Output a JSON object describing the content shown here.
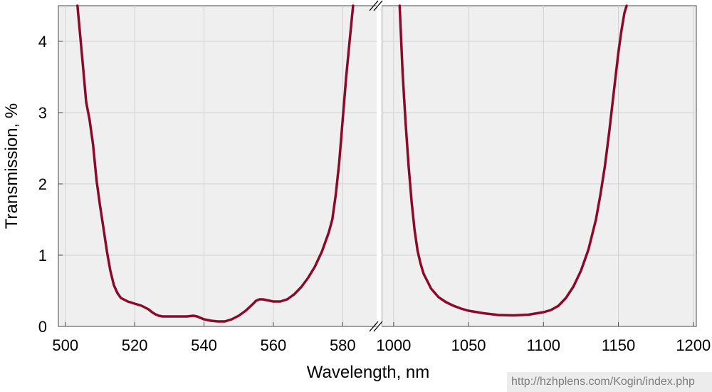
{
  "chart_data": {
    "type": "line",
    "xlabel": "Wavelength, nm",
    "ylabel": "Transmission, %",
    "ylim": [
      0,
      4.5
    ],
    "yticks": [
      0,
      1,
      2,
      3,
      4
    ],
    "grid": true,
    "x_axis_broken": true,
    "line_color": "#8b0a2a",
    "plot_background": "#efefef",
    "panels": [
      {
        "xlim": [
          498,
          590
        ],
        "xticks": [
          500,
          520,
          540,
          560,
          580
        ],
        "series": [
          {
            "x": [
              503.5,
              505,
              506,
              507,
              508,
              509,
              510,
              511,
              512,
              513,
              514,
              515,
              516,
              518,
              520,
              522,
              524,
              525,
              526,
              527,
              528,
              530,
              532,
              535,
              537,
              538,
              540,
              542,
              544,
              546,
              548,
              550,
              552,
              554,
              555,
              556,
              557,
              558,
              560,
              562,
              564,
              566,
              568,
              570,
              572,
              574,
              576,
              577,
              578,
              579,
              580,
              581,
              582,
              583
            ],
            "y": [
              4.5,
              3.7,
              3.15,
              2.9,
              2.55,
              2.05,
              1.7,
              1.38,
              1.05,
              0.78,
              0.58,
              0.47,
              0.4,
              0.35,
              0.32,
              0.29,
              0.24,
              0.2,
              0.17,
              0.15,
              0.14,
              0.14,
              0.14,
              0.14,
              0.15,
              0.14,
              0.1,
              0.08,
              0.07,
              0.07,
              0.1,
              0.15,
              0.22,
              0.31,
              0.36,
              0.38,
              0.38,
              0.37,
              0.35,
              0.35,
              0.38,
              0.45,
              0.55,
              0.68,
              0.84,
              1.05,
              1.32,
              1.5,
              1.85,
              2.3,
              2.9,
              3.5,
              4.0,
              4.5
            ]
          }
        ]
      },
      {
        "xlim": [
          992,
          1202
        ],
        "xticks": [
          1000,
          1050,
          1100,
          1150,
          1200
        ],
        "series": [
          {
            "x": [
              1004,
              1006,
              1008,
              1010,
              1012,
              1014,
              1016,
              1018,
              1020,
              1025,
              1030,
              1035,
              1040,
              1045,
              1050,
              1060,
              1070,
              1080,
              1090,
              1100,
              1105,
              1110,
              1115,
              1120,
              1125,
              1130,
              1135,
              1138,
              1141,
              1144,
              1147,
              1150,
              1152,
              1154,
              1155.5
            ],
            "y": [
              4.5,
              3.55,
              2.85,
              2.25,
              1.75,
              1.35,
              1.06,
              0.88,
              0.74,
              0.53,
              0.41,
              0.34,
              0.29,
              0.25,
              0.22,
              0.185,
              0.16,
              0.155,
              0.165,
              0.2,
              0.23,
              0.29,
              0.4,
              0.56,
              0.78,
              1.08,
              1.5,
              1.85,
              2.25,
              2.75,
              3.3,
              3.85,
              4.15,
              4.4,
              4.5
            ]
          }
        ]
      }
    ]
  },
  "footer": {
    "url": "http://hzhplens.com/Kogin/index.php"
  }
}
